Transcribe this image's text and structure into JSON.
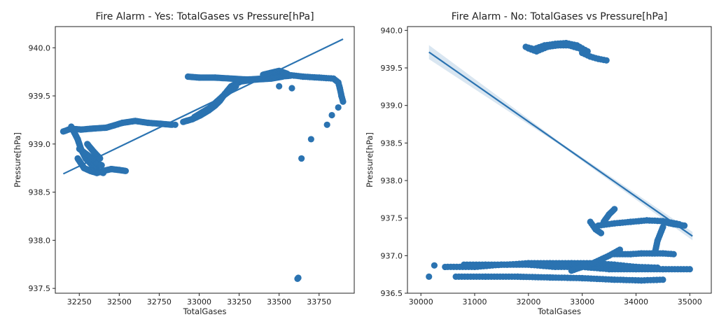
{
  "chart_data": [
    {
      "type": "scatter",
      "title": "Fire Alarm - Yes: TotalGases vs Pressure[hPa]",
      "xlabel": "TotalGases",
      "ylabel": "Pressure[hPa]",
      "xlim": [
        32100,
        33970
      ],
      "ylim": [
        937.45,
        940.22
      ],
      "xticks": [
        32250,
        32500,
        32750,
        33000,
        33250,
        33500,
        33750
      ],
      "yticks": [
        937.5,
        938.0,
        938.5,
        939.0,
        939.5,
        940.0
      ],
      "ytick_labels": [
        "937.5",
        "938.0",
        "938.5",
        "939.0",
        "939.5",
        "940.0"
      ],
      "color": "#2b73b1",
      "regression": {
        "x": [
          32150,
          33900
        ],
        "y": [
          938.69,
          940.09
        ]
      },
      "confidence_band": false,
      "point_paths": [
        {
          "x": [
            32150,
            32200,
            32260,
            32330,
            32420,
            32520,
            32600,
            32680,
            32760,
            32830
          ],
          "y": [
            939.13,
            939.16,
            939.15,
            939.16,
            939.17,
            939.22,
            939.24,
            939.22,
            939.21,
            939.2
          ],
          "spacing": 10
        },
        {
          "x": [
            32200,
            32240,
            32260,
            32290,
            32330,
            32370,
            32400
          ],
          "y": [
            939.18,
            939.05,
            938.95,
            938.85,
            938.78,
            938.72,
            938.7
          ],
          "spacing": 6
        },
        {
          "x": [
            32240,
            32280,
            32320,
            32360,
            32400,
            32450,
            32500,
            32540
          ],
          "y": [
            938.85,
            938.75,
            938.72,
            938.7,
            938.72,
            938.74,
            938.73,
            938.72
          ],
          "spacing": 6
        },
        {
          "x": [
            32250,
            32290,
            32330,
            32360,
            32390
          ],
          "y": [
            938.95,
            938.9,
            938.85,
            938.8,
            938.78
          ],
          "spacing": 6
        },
        {
          "x": [
            32300,
            32340,
            32380
          ],
          "y": [
            939.0,
            938.92,
            938.85
          ],
          "spacing": 6
        },
        {
          "x": [
            32900,
            32960,
            33010,
            33060,
            33100,
            33130,
            33160,
            33200,
            33260,
            33350,
            33450,
            33520
          ],
          "y": [
            939.23,
            939.26,
            939.3,
            939.35,
            939.4,
            939.45,
            939.52,
            939.6,
            939.65,
            939.67,
            939.68,
            939.7
          ],
          "spacing": 6
        },
        {
          "x": [
            32970,
            33020,
            33070,
            33110,
            33150,
            33190,
            33230
          ],
          "y": [
            939.28,
            939.33,
            939.38,
            939.44,
            939.5,
            939.55,
            939.6
          ],
          "spacing": 6
        },
        {
          "x": [
            32930,
            33000,
            33100,
            33200,
            33300,
            33400,
            33500,
            33570
          ],
          "y": [
            939.7,
            939.69,
            939.69,
            939.68,
            939.67,
            939.68,
            939.7,
            939.71
          ],
          "spacing": 8
        },
        {
          "x": [
            33400,
            33450,
            33500,
            33550
          ],
          "y": [
            939.72,
            939.74,
            939.76,
            939.73
          ],
          "spacing": 6
        },
        {
          "x": [
            33550,
            33650,
            33750,
            33840,
            33870,
            33880,
            33890,
            33900
          ],
          "y": [
            939.72,
            939.7,
            939.69,
            939.68,
            939.64,
            939.58,
            939.5,
            939.44
          ],
          "spacing": 14
        }
      ],
      "points": [
        {
          "x": 32850,
          "y": 939.2
        },
        {
          "x": 33500,
          "y": 939.6
        },
        {
          "x": 33580,
          "y": 939.58
        },
        {
          "x": 33700,
          "y": 939.05
        },
        {
          "x": 33800,
          "y": 939.2
        },
        {
          "x": 33830,
          "y": 939.3
        },
        {
          "x": 33870,
          "y": 939.38
        },
        {
          "x": 33640,
          "y": 938.85
        },
        {
          "x": 33620,
          "y": 937.61
        },
        {
          "x": 33615,
          "y": 937.6
        }
      ]
    },
    {
      "type": "scatter",
      "title": "Fire Alarm - No: TotalGases vs Pressure[hPa]",
      "xlabel": "TotalGases",
      "ylabel": "Pressure[hPa]",
      "xlim": [
        29750,
        35400
      ],
      "ylim": [
        936.5,
        940.05
      ],
      "xticks": [
        30000,
        31000,
        32000,
        33000,
        34000,
        35000
      ],
      "yticks": [
        936.5,
        937.0,
        937.5,
        938.0,
        938.5,
        939.0,
        939.5,
        940.0
      ],
      "ytick_labels": [
        "936.5",
        "937.0",
        "937.5",
        "938.0",
        "938.5",
        "939.0",
        "939.5",
        "940.0"
      ],
      "color": "#2b73b1",
      "regression": {
        "x": [
          30150,
          35050
        ],
        "y": [
          939.71,
          937.26
        ]
      },
      "confidence_band": true,
      "point_paths": [
        {
          "x": [
            31950,
            32100,
            32300,
            32500,
            32700,
            32900,
            33100
          ],
          "y": [
            939.78,
            939.75,
            939.8,
            939.82,
            939.83,
            939.8,
            939.72
          ],
          "spacing": 18
        },
        {
          "x": [
            32000,
            32150,
            32350,
            32550,
            32750,
            32950
          ],
          "y": [
            939.76,
            939.72,
            939.78,
            939.8,
            939.8,
            939.76
          ],
          "spacing": 18
        },
        {
          "x": [
            33000,
            33150,
            33300,
            33450
          ],
          "y": [
            939.7,
            939.65,
            939.62,
            939.6
          ],
          "spacing": 18
        },
        {
          "x": [
            30500,
            31000,
            31500,
            32000,
            32500,
            33000,
            33500,
            34000,
            34500,
            35000
          ],
          "y": [
            936.85,
            936.85,
            936.88,
            936.88,
            936.85,
            936.85,
            936.82,
            936.82,
            936.82,
            936.82
          ],
          "spacing": 18
        },
        {
          "x": [
            30800,
            31200,
            31600,
            32000,
            32400,
            32800,
            33200,
            33600,
            34000,
            34400
          ],
          "y": [
            936.88,
            936.88,
            936.88,
            936.9,
            936.9,
            936.9,
            936.9,
            936.88,
            936.85,
            936.84
          ],
          "spacing": 18
        },
        {
          "x": [
            30650,
            31200,
            31800,
            32400,
            33000,
            33600,
            34100,
            34500
          ],
          "y": [
            936.72,
            936.72,
            936.72,
            936.71,
            936.7,
            936.68,
            936.67,
            936.68
          ],
          "spacing": 18
        },
        {
          "x": [
            32800,
            33200,
            33500,
            33700
          ],
          "y": [
            936.8,
            936.9,
            937.0,
            937.08
          ],
          "spacing": 16
        },
        {
          "x": [
            33600,
            33900,
            34100,
            34300,
            34500,
            34700
          ],
          "y": [
            937.02,
            937.02,
            937.03,
            937.03,
            937.03,
            937.02
          ],
          "spacing": 16
        },
        {
          "x": [
            33300,
            33600,
            33900,
            34200,
            34500,
            34800
          ],
          "y": [
            937.4,
            937.43,
            937.45,
            937.47,
            937.46,
            937.42
          ],
          "spacing": 16
        },
        {
          "x": [
            33150,
            33250,
            33350
          ],
          "y": [
            937.45,
            937.35,
            937.3
          ],
          "spacing": 14
        },
        {
          "x": [
            33400,
            33500,
            33600
          ],
          "y": [
            937.45,
            937.55,
            937.62
          ],
          "spacing": 12
        },
        {
          "x": [
            34350,
            34400,
            34500
          ],
          "y": [
            937.03,
            937.2,
            937.38
          ],
          "spacing": 12
        },
        {
          "x": [
            34500,
            34700,
            34900
          ],
          "y": [
            937.45,
            937.42,
            937.4
          ],
          "spacing": 14
        }
      ],
      "points": [
        {
          "x": 30150,
          "y": 936.72
        },
        {
          "x": 30250,
          "y": 936.87
        },
        {
          "x": 30450,
          "y": 936.85
        }
      ]
    }
  ]
}
